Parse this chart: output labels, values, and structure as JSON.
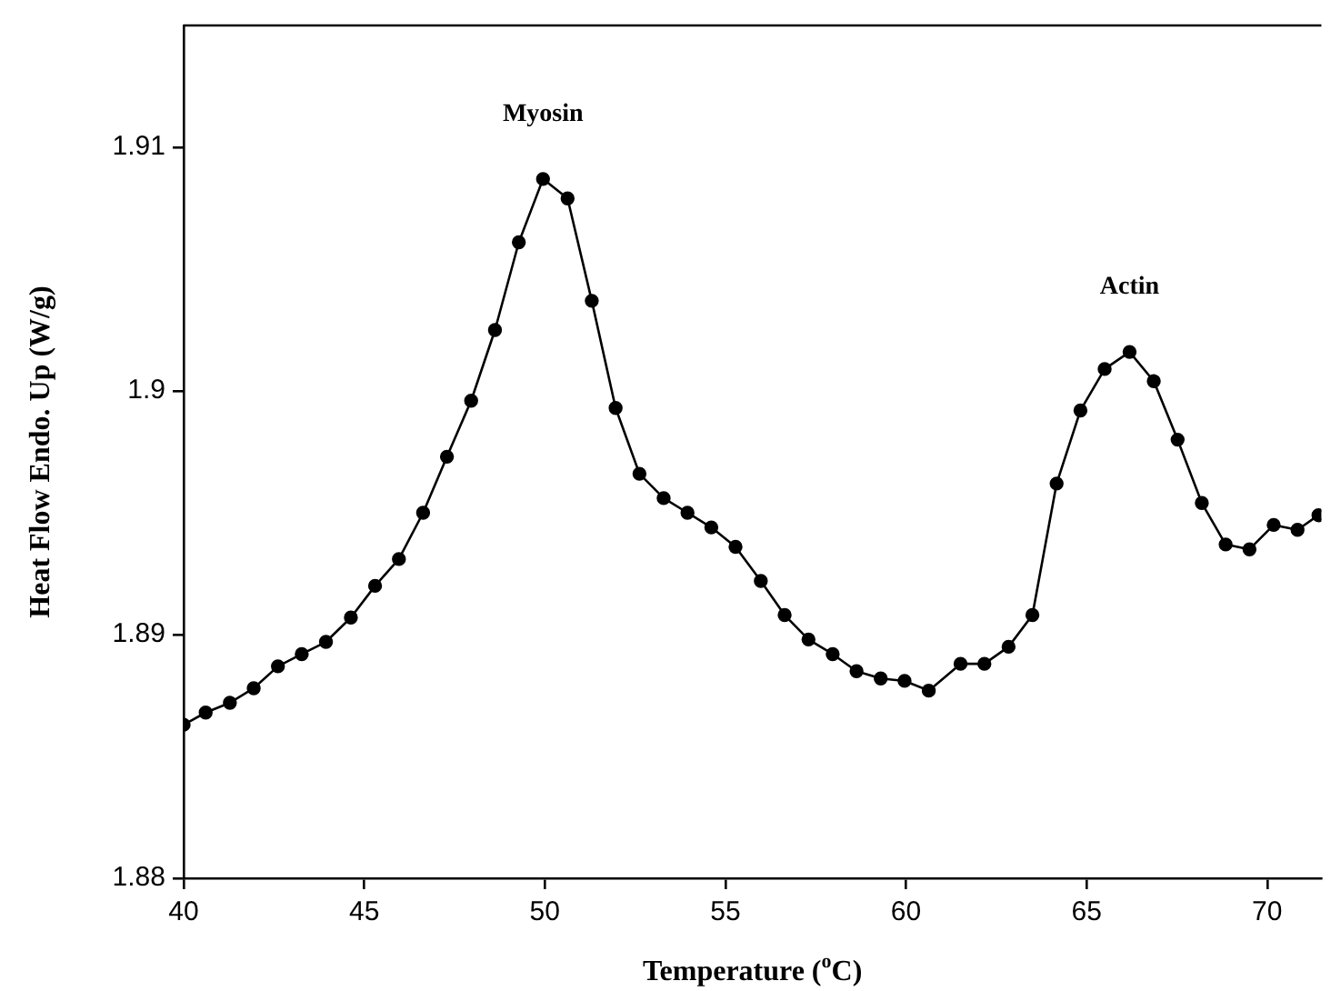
{
  "chart_data": {
    "type": "line",
    "xlabel": "Temperature ($^{o}$C)",
    "ylabel": "Heat Flow Endo. Up (W/g)",
    "xlim": [
      40,
      71.5
    ],
    "xticks": [
      40,
      45,
      50,
      55,
      60,
      65,
      70
    ],
    "ylim": [
      1.88,
      1.915
    ],
    "yticks": [
      1.88,
      1.89,
      1.9,
      1.91
    ],
    "grid": false,
    "legend": false,
    "marker": "circle",
    "line_style": "solid",
    "annotations": [
      {
        "text": "Myosin",
        "x": 49.95,
        "y": 1.9087
      },
      {
        "text": "Actin",
        "x": 66.19,
        "y": 1.9016
      }
    ],
    "series": [
      {
        "color": "#000000",
        "x": [
          40.0,
          40.61,
          41.28,
          41.94,
          42.61,
          43.27,
          43.94,
          44.63,
          45.3,
          45.96,
          46.63,
          47.29,
          47.96,
          48.62,
          49.28,
          49.95,
          50.63,
          51.3,
          51.96,
          52.62,
          53.29,
          53.95,
          54.61,
          55.28,
          55.98,
          56.64,
          57.3,
          57.97,
          58.63,
          59.3,
          59.96,
          60.63,
          61.51,
          62.17,
          62.84,
          63.5,
          64.17,
          64.83,
          65.5,
          66.19,
          66.86,
          67.52,
          68.19,
          68.85,
          69.51,
          70.18,
          70.84,
          71.42
        ],
        "values": [
          1.8863,
          1.8868,
          1.8872,
          1.8878,
          1.8887,
          1.8892,
          1.8897,
          1.8907,
          1.892,
          1.8931,
          1.895,
          1.8973,
          1.8996,
          1.9025,
          1.9061,
          1.9087,
          1.9079,
          1.9037,
          1.8993,
          1.8966,
          1.8956,
          1.895,
          1.8944,
          1.8936,
          1.8922,
          1.8908,
          1.8898,
          1.8892,
          1.8885,
          1.8882,
          1.8881,
          1.8877,
          1.8888,
          1.8888,
          1.8895,
          1.8908,
          1.8962,
          1.8992,
          1.9009,
          1.9016,
          1.9004,
          1.898,
          1.8954,
          1.8937,
          1.8935,
          1.8945,
          1.8943,
          1.8949
        ]
      }
    ]
  }
}
